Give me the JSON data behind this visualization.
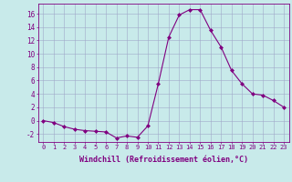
{
  "x": [
    0,
    1,
    2,
    3,
    4,
    5,
    6,
    7,
    8,
    9,
    10,
    11,
    12,
    13,
    14,
    15,
    16,
    17,
    18,
    19,
    20,
    21,
    22,
    23
  ],
  "y": [
    0.0,
    -0.3,
    -0.9,
    -1.3,
    -1.5,
    -1.6,
    -1.7,
    -2.6,
    -2.3,
    -2.5,
    -0.8,
    5.5,
    12.5,
    15.8,
    16.6,
    16.6,
    13.5,
    11.0,
    7.5,
    5.5,
    4.0,
    3.8,
    3.0,
    2.0
  ],
  "line_color": "#800080",
  "marker": "D",
  "marker_size": 2.0,
  "bg_color": "#c8eaea",
  "grid_color": "#a0a8c8",
  "xlabel": "Windchill (Refroidissement éolien,°C)",
  "ylabel_ticks": [
    -2,
    0,
    2,
    4,
    6,
    8,
    10,
    12,
    14,
    16
  ],
  "ylim": [
    -3.2,
    17.5
  ],
  "xlim": [
    -0.5,
    23.5
  ],
  "xticks": [
    0,
    1,
    2,
    3,
    4,
    5,
    6,
    7,
    8,
    9,
    10,
    11,
    12,
    13,
    14,
    15,
    16,
    17,
    18,
    19,
    20,
    21,
    22,
    23
  ],
  "tick_color": "#800080",
  "label_color": "#800080",
  "axis_color": "#800080",
  "xtick_fontsize": 5.0,
  "ytick_fontsize": 5.5,
  "xlabel_fontsize": 6.0
}
